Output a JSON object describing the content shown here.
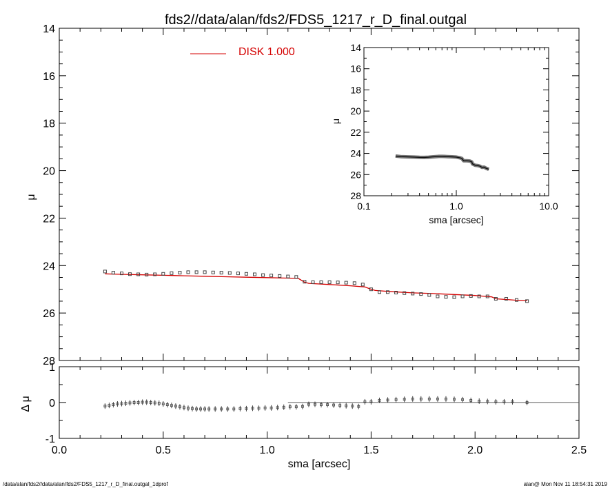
{
  "title": "fds2//data/alan/fds2/FDS5_1217_r_D_final.outgal",
  "footer": {
    "left": "/data/alan/fds2//data/alan/fds2/FDS5_1217_r_D_final.outgal_1dprof",
    "right": "alan@  Mon Nov 11 18:54:31 2019"
  },
  "colors": {
    "model": "#d40000",
    "data": "#444444",
    "axes": "#000000"
  },
  "legend": {
    "label": "DISK  1.000"
  },
  "chart_data": [
    {
      "id": "main",
      "type": "scatter",
      "xlabel": "sma [arcsec]",
      "ylabel": "μ",
      "xlim": [
        0.0,
        2.5
      ],
      "ylim": [
        28,
        14
      ],
      "y_inverted": true,
      "xticks": [
        "0.0",
        "0.5",
        "1.0",
        "1.5",
        "2.0",
        "2.5"
      ],
      "yticks": [
        "14",
        "16",
        "18",
        "20",
        "22",
        "24",
        "26",
        "28"
      ],
      "series": [
        {
          "role": "data",
          "marker": "square",
          "x": [
            0.22,
            0.26,
            0.3,
            0.34,
            0.38,
            0.42,
            0.46,
            0.5,
            0.54,
            0.58,
            0.62,
            0.66,
            0.7,
            0.74,
            0.78,
            0.82,
            0.86,
            0.9,
            0.94,
            0.98,
            1.02,
            1.06,
            1.1,
            1.14,
            1.18,
            1.22,
            1.26,
            1.3,
            1.34,
            1.38,
            1.42,
            1.46,
            1.5,
            1.54,
            1.58,
            1.62,
            1.66,
            1.7,
            1.74,
            1.78,
            1.82,
            1.86,
            1.9,
            1.94,
            1.98,
            2.02,
            2.06,
            2.1,
            2.15,
            2.2,
            2.25
          ],
          "y": [
            24.25,
            24.3,
            24.33,
            24.36,
            24.37,
            24.38,
            24.37,
            24.35,
            24.32,
            24.3,
            24.28,
            24.28,
            24.28,
            24.29,
            24.3,
            24.31,
            24.33,
            24.35,
            24.37,
            24.4,
            24.42,
            24.44,
            24.46,
            24.48,
            24.68,
            24.7,
            24.7,
            24.7,
            24.71,
            24.72,
            24.74,
            24.8,
            25.0,
            25.12,
            25.12,
            25.14,
            25.16,
            25.18,
            25.2,
            25.24,
            25.3,
            25.32,
            25.33,
            25.3,
            25.28,
            25.3,
            25.3,
            25.4,
            25.4,
            25.45,
            25.5
          ]
        },
        {
          "role": "model",
          "name": "DISK  1.000",
          "style": "line",
          "x": [
            0.22,
            0.3,
            0.4,
            0.5,
            0.6,
            0.7,
            0.8,
            0.9,
            1.0,
            1.1,
            1.15,
            1.18,
            1.2,
            1.3,
            1.4,
            1.47,
            1.5,
            1.52,
            1.6,
            1.7,
            1.8,
            1.9,
            2.0,
            2.05,
            2.08,
            2.1,
            2.15,
            2.2,
            2.25
          ],
          "y": [
            24.35,
            24.37,
            24.39,
            24.41,
            24.43,
            24.45,
            24.47,
            24.49,
            24.51,
            24.53,
            24.54,
            24.7,
            24.75,
            24.8,
            24.85,
            24.9,
            25.0,
            25.05,
            25.1,
            25.15,
            25.18,
            25.22,
            25.26,
            25.3,
            25.32,
            25.4,
            25.43,
            25.46,
            25.48
          ]
        }
      ]
    },
    {
      "id": "residual",
      "type": "scatter",
      "xlabel": "",
      "ylabel": "Δ μ",
      "xlim": [
        0.0,
        2.5
      ],
      "ylim": [
        -1,
        1
      ],
      "yticks": [
        "-1",
        "0",
        "1"
      ],
      "zero_line": 0,
      "series": [
        {
          "role": "residual",
          "marker": "errorbar",
          "x": [
            0.22,
            0.24,
            0.26,
            0.28,
            0.3,
            0.32,
            0.34,
            0.36,
            0.38,
            0.4,
            0.42,
            0.44,
            0.46,
            0.48,
            0.5,
            0.52,
            0.54,
            0.56,
            0.58,
            0.6,
            0.62,
            0.64,
            0.66,
            0.68,
            0.7,
            0.72,
            0.75,
            0.78,
            0.81,
            0.84,
            0.87,
            0.9,
            0.93,
            0.96,
            0.99,
            1.02,
            1.05,
            1.08,
            1.11,
            1.14,
            1.17,
            1.2,
            1.23,
            1.26,
            1.29,
            1.32,
            1.35,
            1.38,
            1.41,
            1.44,
            1.47,
            1.5,
            1.54,
            1.58,
            1.62,
            1.66,
            1.7,
            1.74,
            1.78,
            1.82,
            1.86,
            1.9,
            1.94,
            1.98,
            2.02,
            2.06,
            2.1,
            2.14,
            2.18,
            2.25
          ],
          "y": [
            -0.1,
            -0.08,
            -0.06,
            -0.04,
            -0.03,
            -0.02,
            -0.01,
            0.0,
            0.0,
            0.01,
            0.01,
            0.0,
            -0.01,
            -0.02,
            -0.04,
            -0.06,
            -0.08,
            -0.1,
            -0.12,
            -0.14,
            -0.16,
            -0.17,
            -0.18,
            -0.18,
            -0.18,
            -0.18,
            -0.18,
            -0.18,
            -0.18,
            -0.18,
            -0.17,
            -0.17,
            -0.16,
            -0.16,
            -0.15,
            -0.15,
            -0.14,
            -0.13,
            -0.12,
            -0.12,
            -0.11,
            -0.05,
            -0.05,
            -0.06,
            -0.06,
            -0.07,
            -0.08,
            -0.09,
            -0.1,
            -0.11,
            0.02,
            0.02,
            0.06,
            0.07,
            0.08,
            0.09,
            0.1,
            0.1,
            0.1,
            0.1,
            0.1,
            0.09,
            0.08,
            0.06,
            0.04,
            0.03,
            0.02,
            0.02,
            0.02,
            0.0
          ]
        },
        {
          "role": "reference",
          "style": "line",
          "x": [
            1.1,
            2.5
          ],
          "y": [
            0,
            0
          ]
        }
      ]
    },
    {
      "id": "inset",
      "type": "line",
      "xlabel": "sma [arcsec]",
      "ylabel": "μ",
      "xscale": "log",
      "xlim": [
        0.1,
        10.0
      ],
      "ylim": [
        28,
        14
      ],
      "y_inverted": true,
      "xticks": [
        "0.1",
        "1.0",
        "10.0"
      ],
      "yticks": [
        "14",
        "16",
        "18",
        "20",
        "22",
        "24",
        "26",
        "28"
      ],
      "series": [
        {
          "role": "data",
          "x": [
            0.22,
            0.25,
            0.3,
            0.35,
            0.4,
            0.45,
            0.5,
            0.55,
            0.6,
            0.65,
            0.7,
            0.75,
            0.8,
            0.9,
            1.0,
            1.1,
            1.15,
            1.2,
            1.3,
            1.4,
            1.47,
            1.5,
            1.6,
            1.7,
            1.8,
            1.9,
            2.0,
            2.1,
            2.25
          ],
          "y": [
            24.25,
            24.3,
            24.33,
            24.35,
            24.37,
            24.38,
            24.36,
            24.33,
            24.3,
            24.28,
            24.28,
            24.29,
            24.3,
            24.32,
            24.35,
            24.42,
            24.48,
            24.7,
            24.7,
            24.72,
            24.8,
            25.0,
            25.12,
            25.15,
            25.2,
            25.32,
            25.3,
            25.4,
            25.5
          ]
        }
      ]
    }
  ]
}
